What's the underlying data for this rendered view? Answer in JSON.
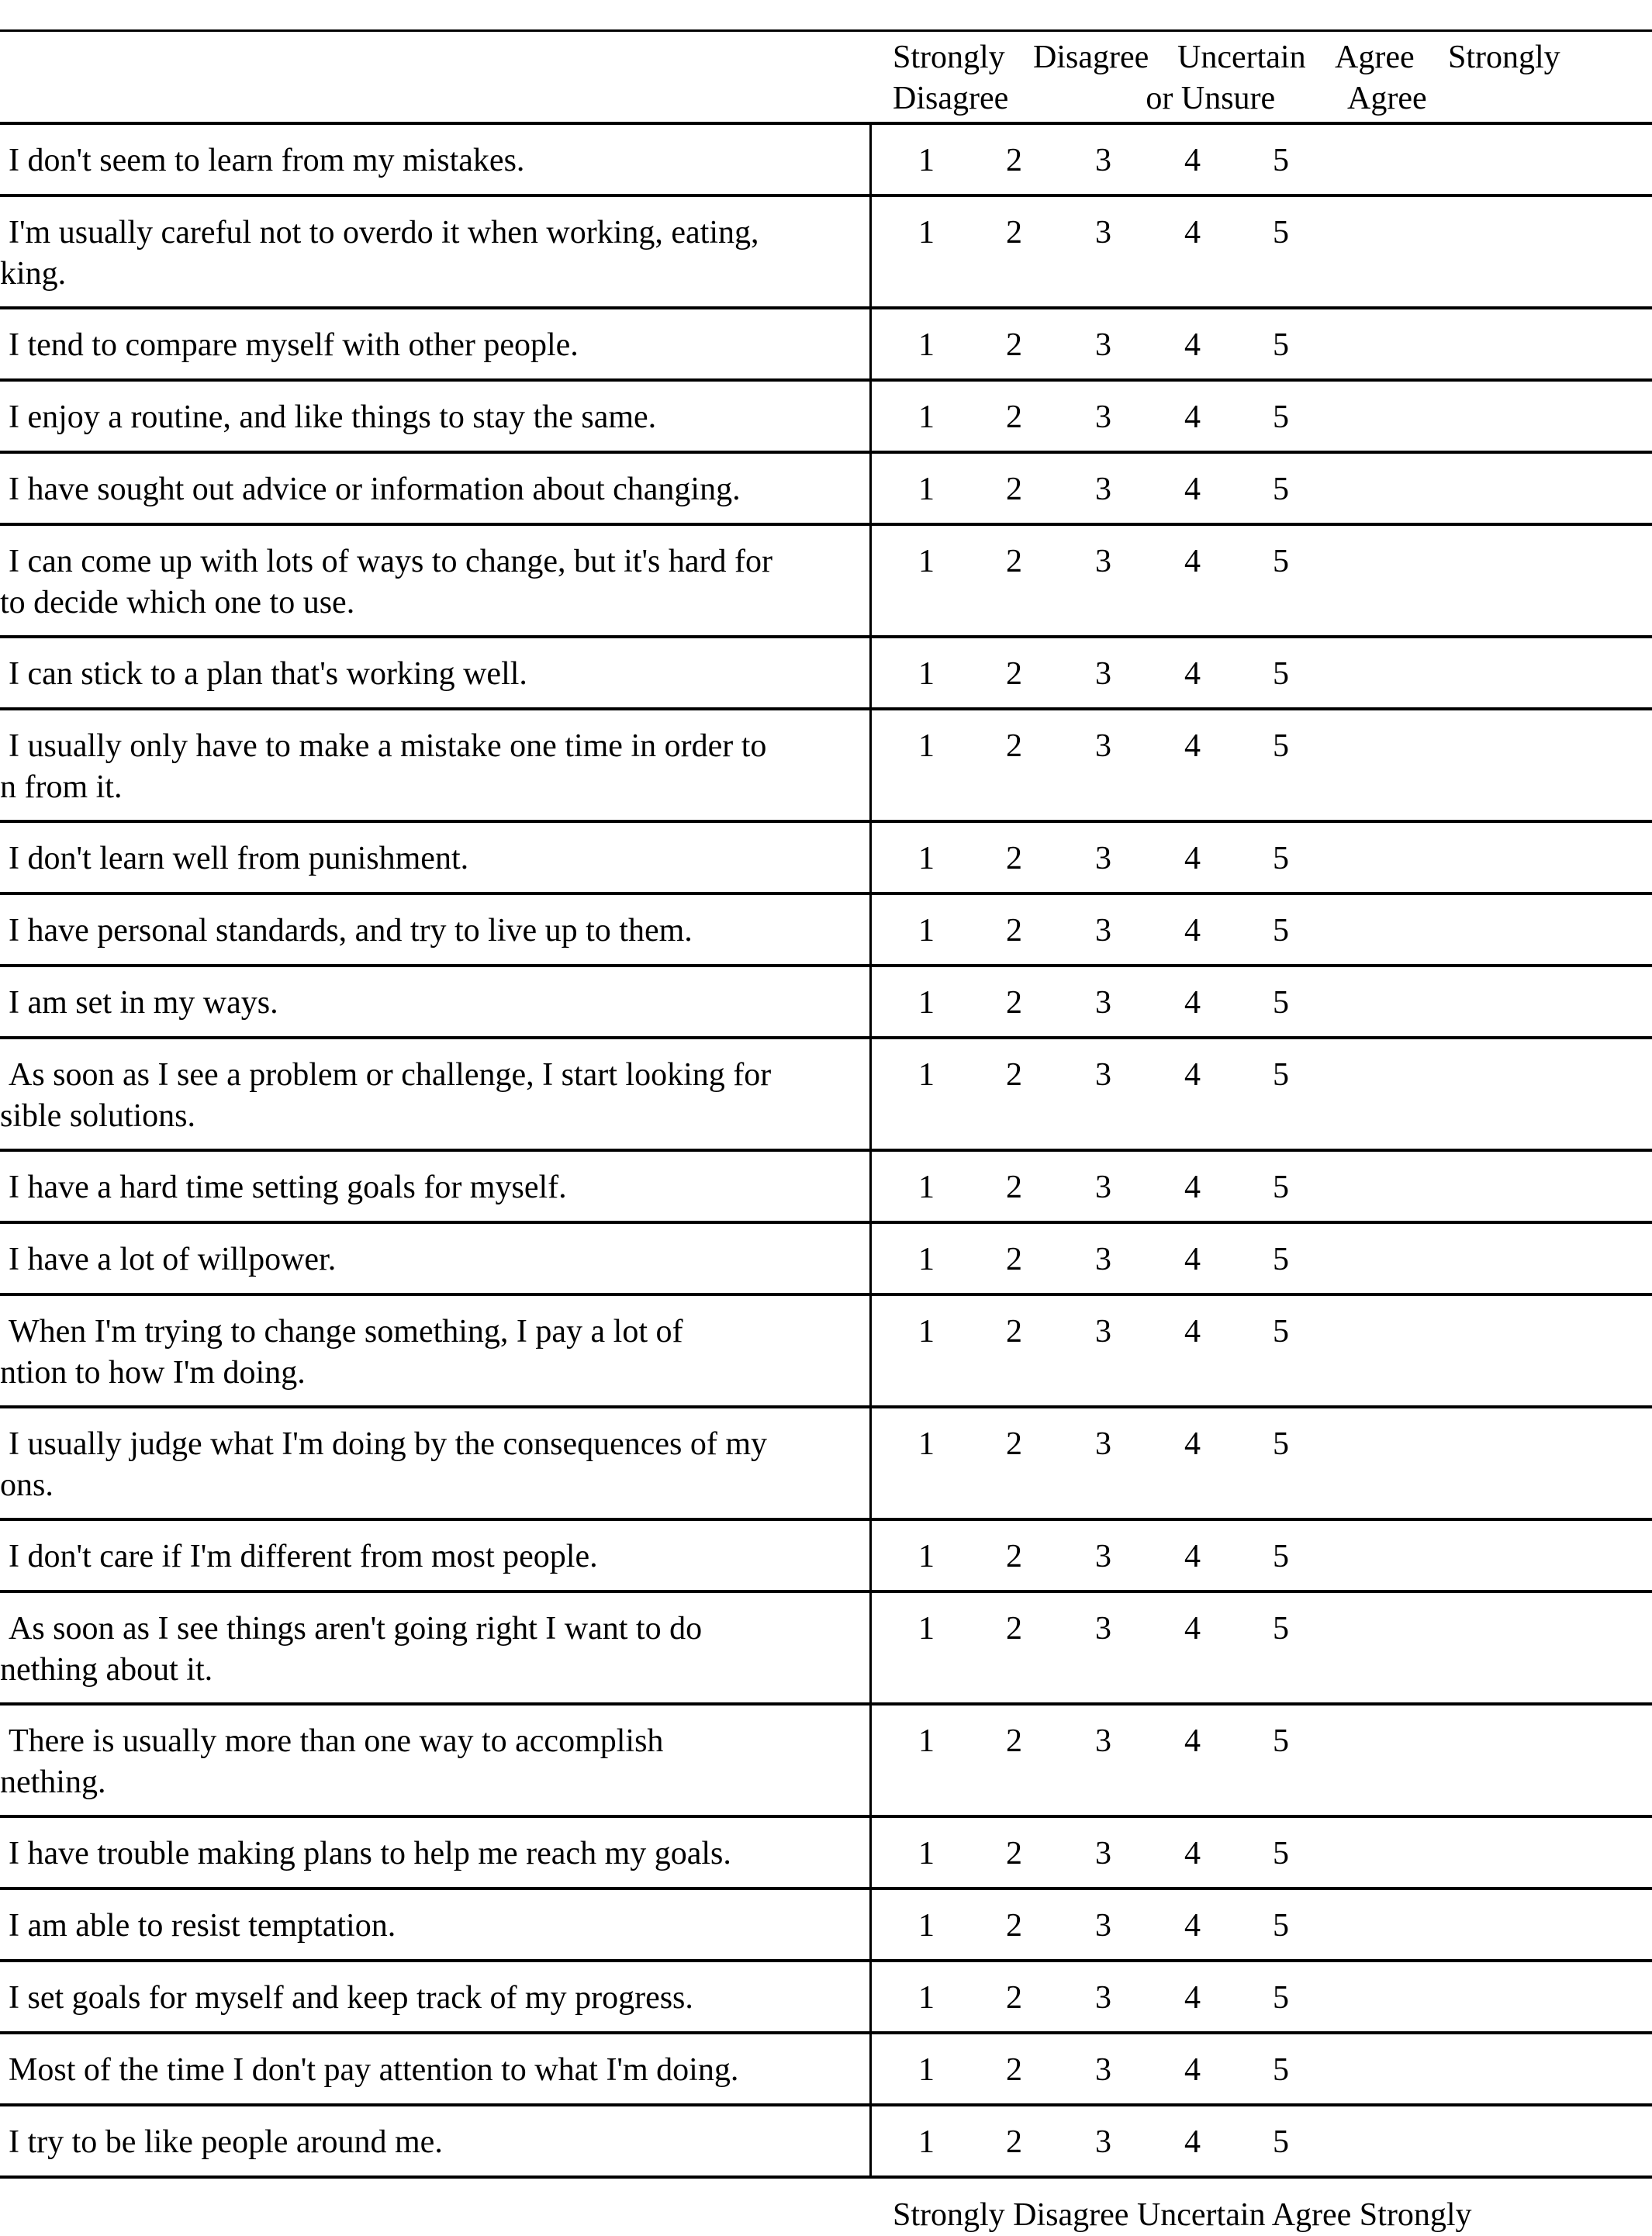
{
  "header": {
    "columns": [
      {
        "line1": "Strongly",
        "line2": "Disagree"
      },
      {
        "line1": "Disagree",
        "line2": ""
      },
      {
        "line1": "Uncertain",
        "line2": "or Unsure"
      },
      {
        "line1": "Agree",
        "line2": ""
      },
      {
        "line1": "Strongly",
        "line2": "Agree"
      }
    ]
  },
  "scale": [
    "1",
    "2",
    "3",
    "4",
    "5"
  ],
  "items": [
    {
      "line1": "I don't seem to learn from my mistakes.",
      "line2": ""
    },
    {
      "line1": "I'm usually careful not to overdo it when working, eating,",
      "line2": "king."
    },
    {
      "line1": "I tend to compare myself with other people.",
      "line2": ""
    },
    {
      "line1": "I enjoy a routine, and like things to stay the same.",
      "line2": ""
    },
    {
      "line1": "I have sought out advice or information about changing.",
      "line2": ""
    },
    {
      "line1": "I can come up with lots of ways to change, but it's hard for",
      "line2": "to decide which one to use."
    },
    {
      "line1": "I can stick to a plan that's working well.",
      "line2": ""
    },
    {
      "line1": "I usually only have to make a mistake one time in order to",
      "line2": "n from it."
    },
    {
      "line1": "I don't learn well from punishment.",
      "line2": ""
    },
    {
      "line1": "I have personal standards, and try to live up to them.",
      "line2": ""
    },
    {
      "line1": "I am set in my ways.",
      "line2": ""
    },
    {
      "line1": "As soon as I see a problem or challenge, I start looking for",
      "line2": "sible solutions."
    },
    {
      "line1": "I have a hard time setting goals for myself.",
      "line2": ""
    },
    {
      "line1": "I have a lot of willpower.",
      "line2": ""
    },
    {
      "line1": "When I'm trying to change something, I pay a lot of",
      "line2": "ntion to how I'm doing."
    },
    {
      "line1": "I usually judge what I'm doing by the consequences of my",
      "line2": "ons."
    },
    {
      "line1": "I don't care if I'm different from most people.",
      "line2": ""
    },
    {
      "line1": "As soon as I see things aren't going right I want to do",
      "line2": "nething about it."
    },
    {
      "line1": "There is usually more than one way to accomplish",
      "line2": "nething."
    },
    {
      "line1": "I have trouble making plans to help me reach my goals.",
      "line2": ""
    },
    {
      "line1": "I am able to resist temptation.",
      "line2": ""
    },
    {
      "line1": "I set goals for myself and keep track of my progress.",
      "line2": ""
    },
    {
      "line1": "Most of the time I don't pay attention to what I'm doing.",
      "line2": ""
    },
    {
      "line1": "I try to be like people around me.",
      "line2": ""
    }
  ],
  "footer_header": "Strongly  Disagree  Uncertain  Agree   Strongly"
}
